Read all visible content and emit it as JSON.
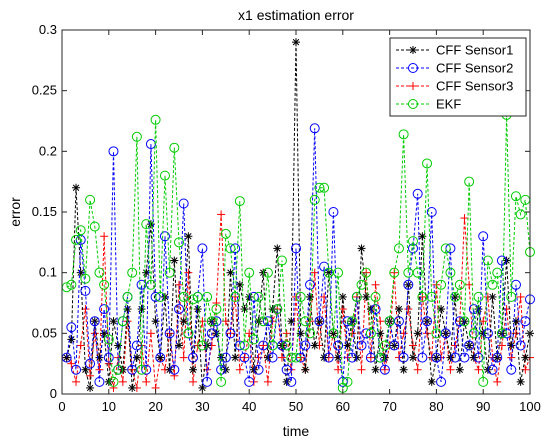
{
  "chart_data": {
    "type": "line",
    "title": "x1 estimation error",
    "xlabel": "time",
    "ylabel": "error",
    "xlim": [
      0,
      100
    ],
    "ylim": [
      0,
      0.3
    ],
    "xticks": [
      0,
      10,
      20,
      30,
      40,
      50,
      60,
      70,
      80,
      90,
      100
    ],
    "yticks": [
      0,
      0.05,
      0.1,
      0.15,
      0.2,
      0.25,
      0.3
    ],
    "xtick_labels": [
      "0",
      "10",
      "20",
      "30",
      "40",
      "50",
      "60",
      "70",
      "80",
      "90",
      "100"
    ],
    "ytick_labels": [
      "0",
      "0.05",
      "0.1",
      "0.15",
      "0.2",
      "0.25",
      "0.3"
    ],
    "grid": false,
    "legend_position": "top-right",
    "x": [
      1,
      2,
      3,
      4,
      5,
      6,
      7,
      8,
      9,
      10,
      11,
      12,
      13,
      14,
      15,
      16,
      17,
      18,
      19,
      20,
      21,
      22,
      23,
      24,
      25,
      26,
      27,
      28,
      29,
      30,
      31,
      32,
      33,
      34,
      35,
      36,
      37,
      38,
      39,
      40,
      41,
      42,
      43,
      44,
      45,
      46,
      47,
      48,
      49,
      50,
      51,
      52,
      53,
      54,
      55,
      56,
      57,
      58,
      59,
      60,
      61,
      62,
      63,
      64,
      65,
      66,
      67,
      68,
      69,
      70,
      71,
      72,
      73,
      74,
      75,
      76,
      77,
      78,
      79,
      80,
      81,
      82,
      83,
      84,
      85,
      86,
      87,
      88,
      89,
      90,
      91,
      92,
      93,
      94,
      95,
      96,
      97,
      98,
      99,
      100
    ],
    "series": [
      {
        "name": "CFF Sensor1",
        "color": "#000000",
        "marker": "asterisk",
        "values": [
          0.03,
          0.045,
          0.17,
          0.1,
          0.02,
          0.005,
          0.06,
          0.03,
          0.05,
          0.01,
          0.06,
          0.04,
          0.02,
          0.07,
          0.005,
          0.03,
          0.07,
          0.1,
          0.14,
          0.06,
          0.03,
          0.08,
          0.02,
          0.11,
          0.04,
          0.06,
          0.13,
          0.02,
          0.07,
          0.005,
          0.04,
          0.06,
          0.05,
          0.03,
          0.02,
          0.1,
          0.03,
          0.09,
          0.07,
          0.08,
          0.02,
          0.06,
          0.1,
          0.03,
          0.07,
          0.12,
          0.04,
          0.01,
          0.06,
          0.29,
          0.05,
          0.02,
          0.08,
          0.04,
          0.06,
          0.03,
          0.1,
          0.05,
          0.03,
          0.08,
          0.04,
          0.06,
          0.03,
          0.12,
          0.08,
          0.07,
          0.02,
          0.05,
          0.03,
          0.06,
          0.04,
          0.07,
          0.02,
          0.09,
          0.03,
          0.05,
          0.13,
          0.06,
          0.01,
          0.03,
          0.07,
          0.05,
          0.03,
          0.08,
          0.02,
          0.06,
          0.04,
          0.03,
          0.07,
          0.05,
          0.02,
          0.08,
          0.03,
          0.05,
          0.11,
          0.04,
          0.06,
          0.01,
          0.03,
          0.05
        ]
      },
      {
        "name": "CFF Sensor2",
        "color": "#0000ff",
        "marker": "circle",
        "values": [
          0.03,
          0.055,
          0.02,
          0.127,
          0.085,
          0.025,
          0.06,
          0.01,
          0.07,
          0.03,
          0.2,
          0.02,
          0.06,
          0.08,
          0.02,
          0.04,
          0.09,
          0.02,
          0.206,
          0.08,
          0.03,
          0.13,
          0.05,
          0.02,
          0.07,
          0.157,
          0.05,
          0.03,
          0.08,
          0.12,
          0.01,
          0.05,
          0.06,
          0.02,
          0.03,
          0.05,
          0.12,
          0.04,
          0.03,
          0.01,
          0.08,
          0.02,
          0.04,
          0.06,
          0.03,
          0.07,
          0.04,
          0.02,
          0.01,
          0.12,
          0.03,
          0.04,
          0.09,
          0.219,
          0.06,
          0.105,
          0.03,
          0.15,
          0.04,
          0.01,
          0.06,
          0.03,
          0.08,
          0.04,
          0.05,
          0.03,
          0.07,
          0.03,
          0.02,
          0.06,
          0.04,
          0.06,
          0.03,
          0.09,
          0.12,
          0.165,
          0.03,
          0.06,
          0.15,
          0.03,
          0.01,
          0.05,
          0.12,
          0.03,
          0.06,
          0.03,
          0.04,
          0.07,
          0.03,
          0.13,
          0.05,
          0.02,
          0.03,
          0.11,
          0.05,
          0.02,
          0.09,
          0.04,
          0.06,
          0.078
        ]
      },
      {
        "name": "CFF Sensor3",
        "color": "#ff0000",
        "marker": "plus",
        "values": [
          0.03,
          0.025,
          0.01,
          0.04,
          0.07,
          0.015,
          0.05,
          0.02,
          0.13,
          0.025,
          0.005,
          0.03,
          0.01,
          0.06,
          0.02,
          0.005,
          0.04,
          0.01,
          0.05,
          0.005,
          0.03,
          0.02,
          0.05,
          0.015,
          0.09,
          0.03,
          0.1,
          0.01,
          0.04,
          0.06,
          0.02,
          0.04,
          0.075,
          0.148,
          0.06,
          0.05,
          0.08,
          0.02,
          0.03,
          0.05,
          0.01,
          0.03,
          0.04,
          0.01,
          0.06,
          0.07,
          0.03,
          0.05,
          0.02,
          0.08,
          0.03,
          0.02,
          0.06,
          0.1,
          0.04,
          0.08,
          0.03,
          0.05,
          0.02,
          0.07,
          0.03,
          0.05,
          0.08,
          0.02,
          0.1,
          0.03,
          0.09,
          0.06,
          0.02,
          0.04,
          0.1,
          0.03,
          0.05,
          0.07,
          0.04,
          0.02,
          0.08,
          0.05,
          0.03,
          0.09,
          0.03,
          0.05,
          0.02,
          0.04,
          0.06,
          0.145,
          0.09,
          0.03,
          0.02,
          0.06,
          0.08,
          0.03,
          0.01,
          0.04,
          0.07,
          0.03,
          0.05,
          0.08,
          0.02,
          0.03
        ]
      },
      {
        "name": "EKF",
        "color": "#00cc00",
        "marker": "circle",
        "values": [
          0.088,
          0.09,
          0.127,
          0.135,
          0.095,
          0.16,
          0.138,
          0.1,
          0.09,
          0.045,
          0.01,
          0.02,
          0.06,
          0.08,
          0.1,
          0.212,
          0.02,
          0.14,
          0.09,
          0.226,
          0.08,
          0.18,
          0.1,
          0.203,
          0.125,
          0.08,
          0.05,
          0.078,
          0.08,
          0.04,
          0.08,
          0.06,
          0.07,
          0.01,
          0.132,
          0.12,
          0.08,
          0.159,
          0.04,
          0.1,
          0.045,
          0.08,
          0.06,
          0.1,
          0.04,
          0.07,
          0.11,
          0.04,
          0.03,
          0.03,
          0.08,
          0.06,
          0.05,
          0.16,
          0.17,
          0.17,
          0.1,
          0.05,
          0.1,
          0.005,
          0.01,
          0.06,
          0.08,
          0.09,
          0.1,
          0.05,
          0.08,
          0.03,
          0.04,
          0.06,
          0.1,
          0.12,
          0.214,
          0.1,
          0.126,
          0.1,
          0.08,
          0.19,
          0.08,
          0.05,
          0.09,
          0.12,
          0.1,
          0.08,
          0.09,
          0.06,
          0.175,
          0.05,
          0.08,
          0.01,
          0.11,
          0.09,
          0.1,
          0.05,
          0.23,
          0.08,
          0.163,
          0.148,
          0.16,
          0.117
        ]
      }
    ]
  }
}
